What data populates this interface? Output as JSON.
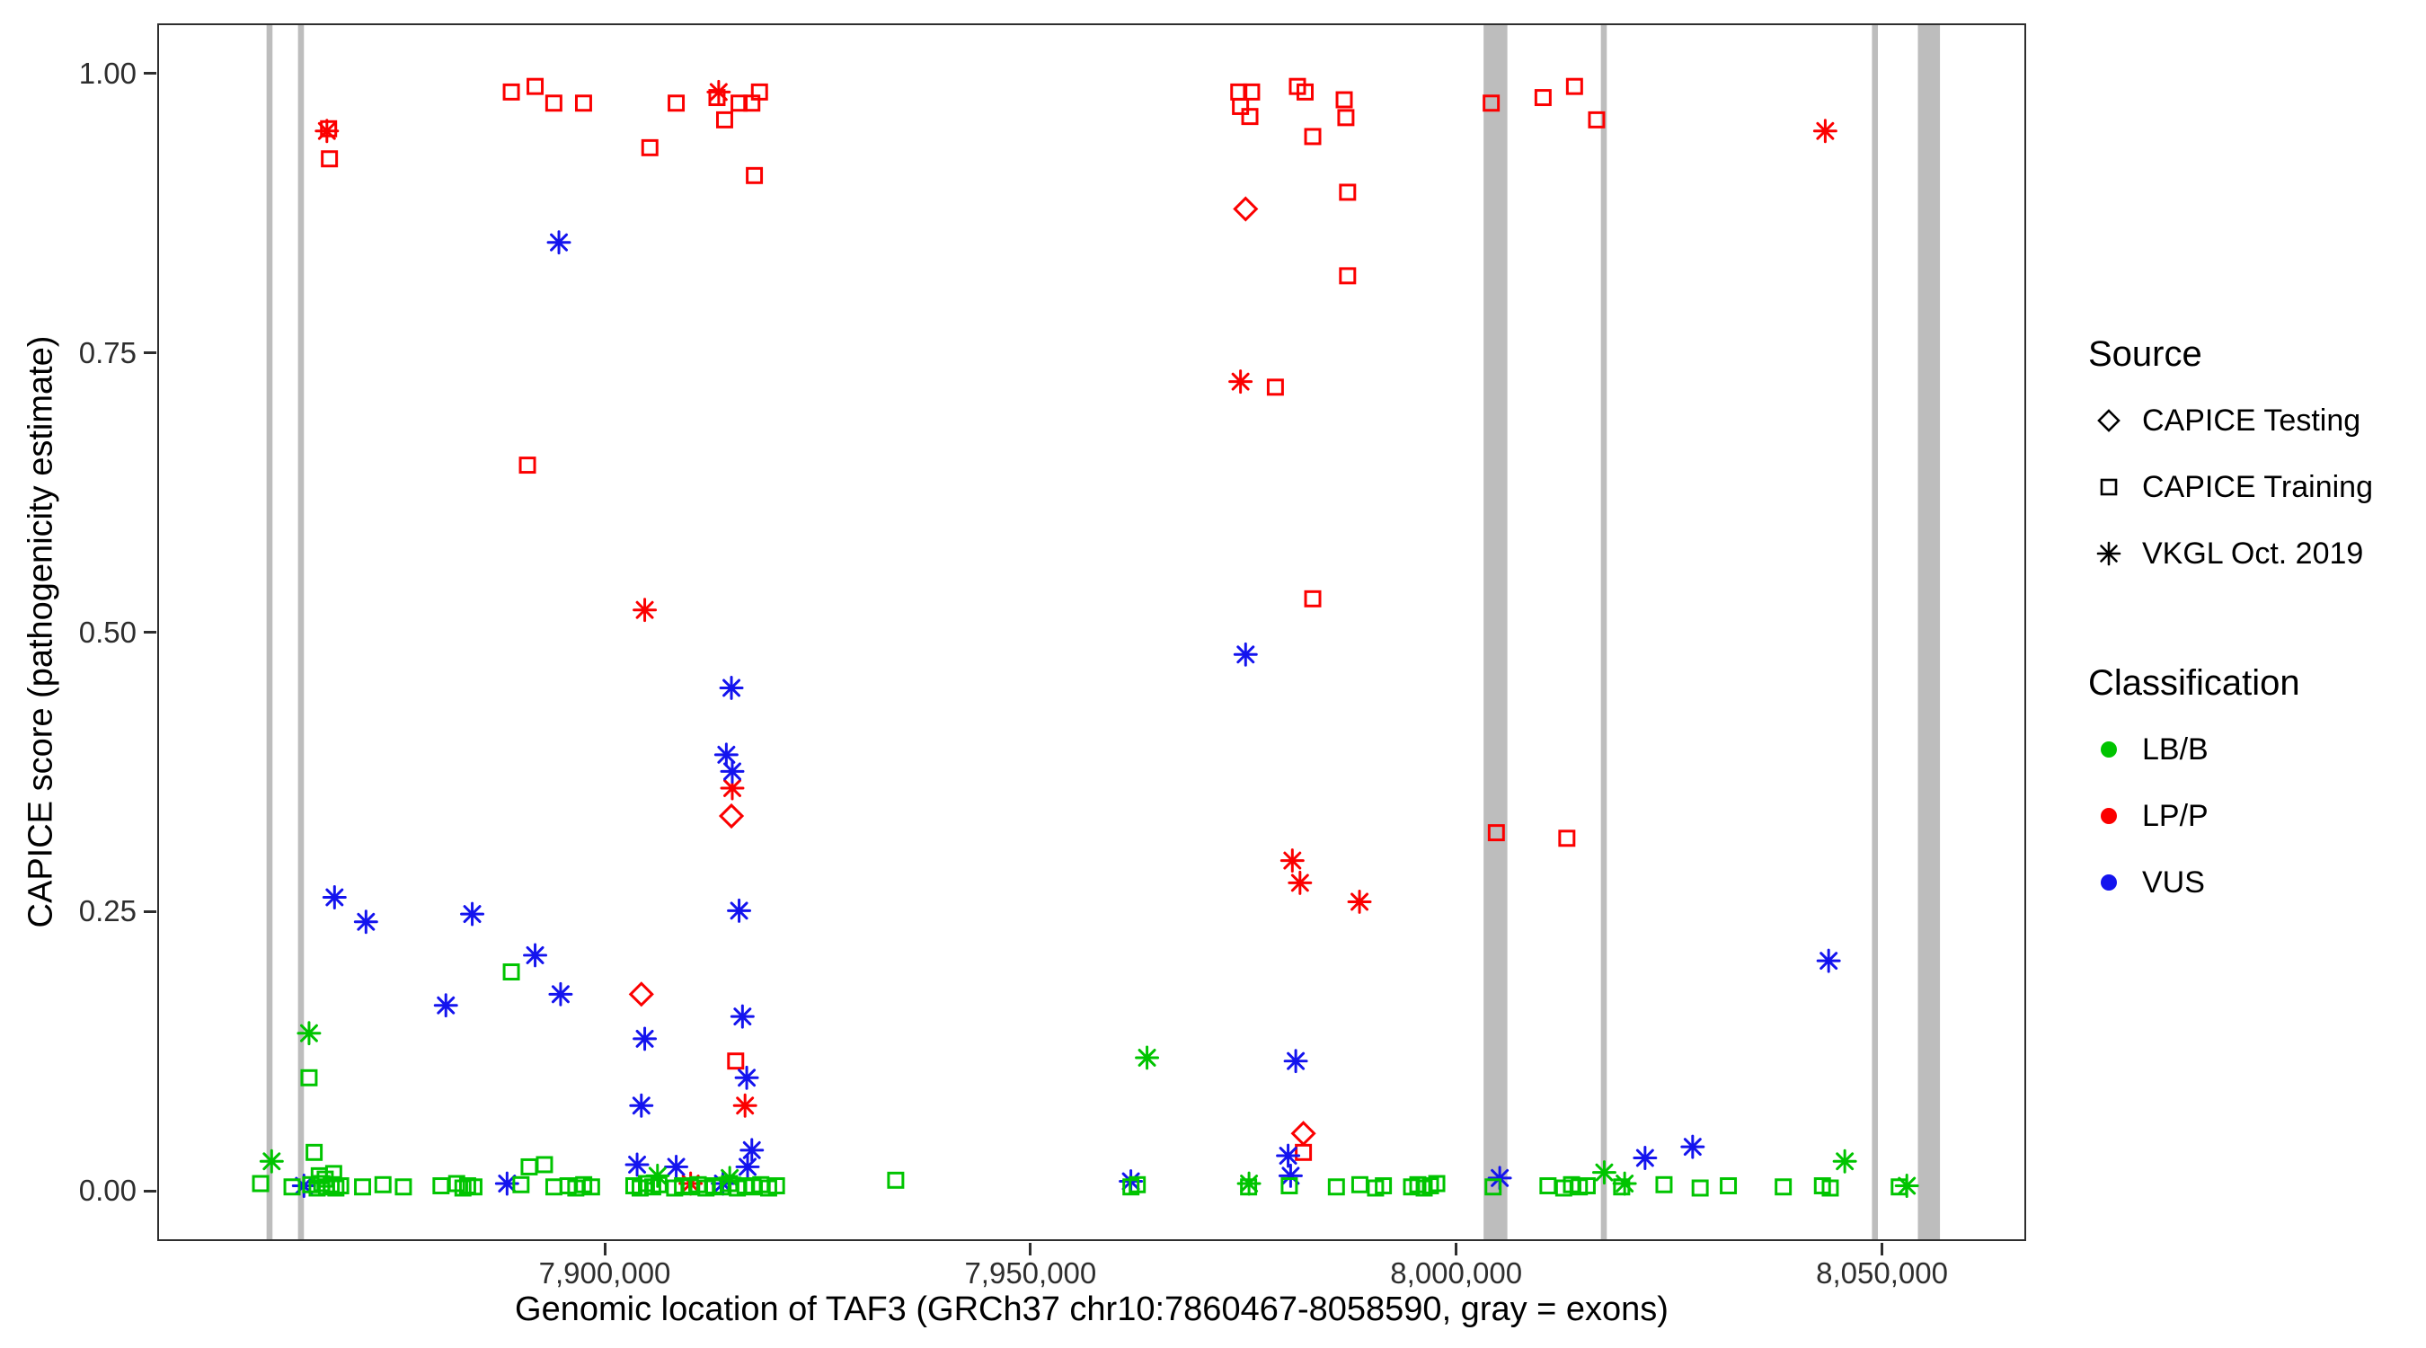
{
  "legend": {
    "source_title": "Source",
    "source_items": [
      {
        "label": "CAPICE Testing",
        "marker": "diamond-open"
      },
      {
        "label": "CAPICE Training",
        "marker": "square-open"
      },
      {
        "label": "VKGL Oct. 2019",
        "marker": "asterisk"
      }
    ],
    "classification_title": "Classification",
    "classification_items": [
      {
        "label": "LB/B",
        "color": "#00c400"
      },
      {
        "label": "LP/P",
        "color": "#fb0000"
      },
      {
        "label": "VUS",
        "color": "#1414ee"
      }
    ]
  },
  "chart_data": {
    "type": "scatter",
    "title": "",
    "xlabel": "Genomic location of TAF3 (GRCh37 chr10:7860467-8058590, gray = exons)",
    "ylabel": "CAPICE score (pathogenicity estimate)",
    "xlim": [
      7847450,
      8066930
    ],
    "ylim": [
      -0.045,
      1.045
    ],
    "grid": false,
    "legend_position": "right",
    "xticks": [
      {
        "value": 7900000,
        "label": "7,900,000"
      },
      {
        "value": 7950000,
        "label": "7,950,000"
      },
      {
        "value": 8000000,
        "label": "8,000,000"
      },
      {
        "value": 8050000,
        "label": "8,050,000"
      }
    ],
    "yticks": [
      {
        "value": 0.0,
        "label": "0.00"
      },
      {
        "value": 0.25,
        "label": "0.25"
      },
      {
        "value": 0.5,
        "label": "0.50"
      },
      {
        "value": 0.75,
        "label": "0.75"
      },
      {
        "value": 1.0,
        "label": "1.00"
      }
    ],
    "exon_color": "#bdbdbd",
    "colors": {
      "LB/B": "#00c400",
      "LP/P": "#fb0000",
      "VUS": "#1414ee"
    },
    "source_shapes": {
      "testing": "diamond-open",
      "training": "square-open",
      "vkgl": "asterisk"
    },
    "exons": [
      {
        "start": 7860100,
        "end": 7860800
      },
      {
        "start": 7863800,
        "end": 7864500
      },
      {
        "start": 8003300,
        "end": 8006100
      },
      {
        "start": 8017100,
        "end": 8017800
      },
      {
        "start": 8049000,
        "end": 8049700
      },
      {
        "start": 8054400,
        "end": 8057000
      }
    ],
    "points": [
      {
        "x": 7888900,
        "y": 0.985,
        "c": "LP/P",
        "s": "training"
      },
      {
        "x": 7891700,
        "y": 0.99,
        "c": "LP/P",
        "s": "training"
      },
      {
        "x": 7893900,
        "y": 0.975,
        "c": "LP/P",
        "s": "training"
      },
      {
        "x": 7897400,
        "y": 0.975,
        "c": "LP/P",
        "s": "training"
      },
      {
        "x": 7905200,
        "y": 0.935,
        "c": "LP/P",
        "s": "training"
      },
      {
        "x": 7908300,
        "y": 0.975,
        "c": "LP/P",
        "s": "training"
      },
      {
        "x": 7913100,
        "y": 0.98,
        "c": "LP/P",
        "s": "training"
      },
      {
        "x": 7914000,
        "y": 0.96,
        "c": "LP/P",
        "s": "training"
      },
      {
        "x": 7915700,
        "y": 0.975,
        "c": "LP/P",
        "s": "training"
      },
      {
        "x": 7917200,
        "y": 0.975,
        "c": "LP/P",
        "s": "training"
      },
      {
        "x": 7918100,
        "y": 0.985,
        "c": "LP/P",
        "s": "training"
      },
      {
        "x": 7917500,
        "y": 0.91,
        "c": "LP/P",
        "s": "training"
      },
      {
        "x": 7867500,
        "y": 0.925,
        "c": "LP/P",
        "s": "training"
      },
      {
        "x": 7867400,
        "y": 0.952,
        "c": "LP/P",
        "s": "training"
      },
      {
        "x": 7890800,
        "y": 0.65,
        "c": "LP/P",
        "s": "training"
      },
      {
        "x": 7974500,
        "y": 0.985,
        "c": "LP/P",
        "s": "training"
      },
      {
        "x": 7976000,
        "y": 0.985,
        "c": "LP/P",
        "s": "training"
      },
      {
        "x": 7974700,
        "y": 0.972,
        "c": "LP/P",
        "s": "training"
      },
      {
        "x": 7975800,
        "y": 0.963,
        "c": "LP/P",
        "s": "training"
      },
      {
        "x": 7981400,
        "y": 0.99,
        "c": "LP/P",
        "s": "training"
      },
      {
        "x": 7982300,
        "y": 0.985,
        "c": "LP/P",
        "s": "training"
      },
      {
        "x": 7986900,
        "y": 0.978,
        "c": "LP/P",
        "s": "training"
      },
      {
        "x": 7987100,
        "y": 0.962,
        "c": "LP/P",
        "s": "training"
      },
      {
        "x": 7983200,
        "y": 0.945,
        "c": "LP/P",
        "s": "training"
      },
      {
        "x": 7987300,
        "y": 0.895,
        "c": "LP/P",
        "s": "training"
      },
      {
        "x": 7987300,
        "y": 0.82,
        "c": "LP/P",
        "s": "training"
      },
      {
        "x": 7978800,
        "y": 0.72,
        "c": "LP/P",
        "s": "training"
      },
      {
        "x": 7983200,
        "y": 0.53,
        "c": "LP/P",
        "s": "training"
      },
      {
        "x": 8004200,
        "y": 0.975,
        "c": "LP/P",
        "s": "training"
      },
      {
        "x": 8010300,
        "y": 0.98,
        "c": "LP/P",
        "s": "training"
      },
      {
        "x": 8014000,
        "y": 0.99,
        "c": "LP/P",
        "s": "training"
      },
      {
        "x": 8016600,
        "y": 0.96,
        "c": "LP/P",
        "s": "training"
      },
      {
        "x": 8004800,
        "y": 0.32,
        "c": "LP/P",
        "s": "training"
      },
      {
        "x": 8013100,
        "y": 0.315,
        "c": "LP/P",
        "s": "training"
      },
      {
        "x": 7915300,
        "y": 0.115,
        "c": "LP/P",
        "s": "training"
      },
      {
        "x": 7982100,
        "y": 0.033,
        "c": "LP/P",
        "s": "training"
      },
      {
        "x": 7975300,
        "y": 0.88,
        "c": "LP/P",
        "s": "testing"
      },
      {
        "x": 7914800,
        "y": 0.335,
        "c": "LP/P",
        "s": "testing"
      },
      {
        "x": 7904200,
        "y": 0.175,
        "c": "LP/P",
        "s": "testing"
      },
      {
        "x": 7982100,
        "y": 0.05,
        "c": "LP/P",
        "s": "testing"
      },
      {
        "x": 7867200,
        "y": 0.95,
        "c": "LP/P",
        "s": "vkgl"
      },
      {
        "x": 7913300,
        "y": 0.985,
        "c": "LP/P",
        "s": "vkgl"
      },
      {
        "x": 7904600,
        "y": 0.52,
        "c": "LP/P",
        "s": "vkgl"
      },
      {
        "x": 7914900,
        "y": 0.36,
        "c": "LP/P",
        "s": "vkgl"
      },
      {
        "x": 7974700,
        "y": 0.725,
        "c": "LP/P",
        "s": "vkgl"
      },
      {
        "x": 7980800,
        "y": 0.295,
        "c": "LP/P",
        "s": "vkgl"
      },
      {
        "x": 7981700,
        "y": 0.275,
        "c": "LP/P",
        "s": "vkgl"
      },
      {
        "x": 7988700,
        "y": 0.258,
        "c": "LP/P",
        "s": "vkgl"
      },
      {
        "x": 8043500,
        "y": 0.95,
        "c": "LP/P",
        "s": "vkgl"
      },
      {
        "x": 7916400,
        "y": 0.075,
        "c": "LP/P",
        "s": "vkgl"
      },
      {
        "x": 7910000,
        "y": 0.005,
        "c": "LP/P",
        "s": "vkgl"
      },
      {
        "x": 7894500,
        "y": 0.85,
        "c": "VUS",
        "s": "vkgl"
      },
      {
        "x": 7914800,
        "y": 0.45,
        "c": "VUS",
        "s": "vkgl"
      },
      {
        "x": 7914200,
        "y": 0.39,
        "c": "VUS",
        "s": "vkgl"
      },
      {
        "x": 7914900,
        "y": 0.375,
        "c": "VUS",
        "s": "vkgl"
      },
      {
        "x": 7915700,
        "y": 0.25,
        "c": "VUS",
        "s": "vkgl"
      },
      {
        "x": 7868100,
        "y": 0.262,
        "c": "VUS",
        "s": "vkgl"
      },
      {
        "x": 7871800,
        "y": 0.24,
        "c": "VUS",
        "s": "vkgl"
      },
      {
        "x": 7884300,
        "y": 0.247,
        "c": "VUS",
        "s": "vkgl"
      },
      {
        "x": 7881200,
        "y": 0.165,
        "c": "VUS",
        "s": "vkgl"
      },
      {
        "x": 7891700,
        "y": 0.21,
        "c": "VUS",
        "s": "vkgl"
      },
      {
        "x": 7894700,
        "y": 0.175,
        "c": "VUS",
        "s": "vkgl"
      },
      {
        "x": 7904600,
        "y": 0.135,
        "c": "VUS",
        "s": "vkgl"
      },
      {
        "x": 7904200,
        "y": 0.075,
        "c": "VUS",
        "s": "vkgl"
      },
      {
        "x": 7916100,
        "y": 0.155,
        "c": "VUS",
        "s": "vkgl"
      },
      {
        "x": 7916600,
        "y": 0.1,
        "c": "VUS",
        "s": "vkgl"
      },
      {
        "x": 7975300,
        "y": 0.48,
        "c": "VUS",
        "s": "vkgl"
      },
      {
        "x": 7981200,
        "y": 0.115,
        "c": "VUS",
        "s": "vkgl"
      },
      {
        "x": 7917200,
        "y": 0.035,
        "c": "VUS",
        "s": "vkgl"
      },
      {
        "x": 7908300,
        "y": 0.02,
        "c": "VUS",
        "s": "vkgl"
      },
      {
        "x": 7903700,
        "y": 0.022,
        "c": "VUS",
        "s": "vkgl"
      },
      {
        "x": 7888400,
        "y": 0.005,
        "c": "VUS",
        "s": "vkgl"
      },
      {
        "x": 7961800,
        "y": 0.007,
        "c": "VUS",
        "s": "vkgl"
      },
      {
        "x": 7980300,
        "y": 0.03,
        "c": "VUS",
        "s": "vkgl"
      },
      {
        "x": 7980600,
        "y": 0.012,
        "c": "VUS",
        "s": "vkgl"
      },
      {
        "x": 8005200,
        "y": 0.01,
        "c": "VUS",
        "s": "vkgl"
      },
      {
        "x": 8022300,
        "y": 0.028,
        "c": "VUS",
        "s": "vkgl"
      },
      {
        "x": 8027900,
        "y": 0.038,
        "c": "VUS",
        "s": "vkgl"
      },
      {
        "x": 8043900,
        "y": 0.205,
        "c": "VUS",
        "s": "vkgl"
      },
      {
        "x": 7913800,
        "y": 0.005,
        "c": "VUS",
        "s": "vkgl"
      },
      {
        "x": 7864500,
        "y": 0.003,
        "c": "VUS",
        "s": "vkgl"
      },
      {
        "x": 7916700,
        "y": 0.02,
        "c": "VUS",
        "s": "vkgl"
      },
      {
        "x": 7860700,
        "y": 0.025,
        "c": "LB/B",
        "s": "vkgl"
      },
      {
        "x": 7865100,
        "y": 0.14,
        "c": "LB/B",
        "s": "vkgl"
      },
      {
        "x": 7963700,
        "y": 0.118,
        "c": "LB/B",
        "s": "vkgl"
      },
      {
        "x": 8017500,
        "y": 0.015,
        "c": "LB/B",
        "s": "vkgl"
      },
      {
        "x": 8045800,
        "y": 0.025,
        "c": "LB/B",
        "s": "vkgl"
      },
      {
        "x": 7975700,
        "y": 0.005,
        "c": "LB/B",
        "s": "vkgl"
      },
      {
        "x": 7906100,
        "y": 0.012,
        "c": "LB/B",
        "s": "vkgl"
      },
      {
        "x": 8019900,
        "y": 0.005,
        "c": "LB/B",
        "s": "vkgl"
      },
      {
        "x": 8053100,
        "y": 0.003,
        "c": "LB/B",
        "s": "vkgl"
      },
      {
        "x": 7914600,
        "y": 0.01,
        "c": "LB/B",
        "s": "vkgl"
      },
      {
        "x": 7888900,
        "y": 0.195,
        "c": "LB/B",
        "s": "training"
      },
      {
        "x": 7865100,
        "y": 0.1,
        "c": "LB/B",
        "s": "training"
      },
      {
        "x": 7865700,
        "y": 0.033,
        "c": "LB/B",
        "s": "training"
      },
      {
        "x": 7891000,
        "y": 0.02,
        "c": "LB/B",
        "s": "training"
      },
      {
        "x": 7892800,
        "y": 0.022,
        "c": "LB/B",
        "s": "training"
      },
      {
        "x": 7866300,
        "y": 0.012,
        "c": "LB/B",
        "s": "training"
      },
      {
        "x": 7867000,
        "y": 0.009,
        "c": "LB/B",
        "s": "training"
      },
      {
        "x": 7868000,
        "y": 0.014,
        "c": "LB/B",
        "s": "training"
      },
      {
        "x": 7859400,
        "y": 0.005,
        "c": "LB/B",
        "s": "training"
      },
      {
        "x": 7863100,
        "y": 0.002,
        "c": "LB/B",
        "s": "training"
      },
      {
        "x": 7865300,
        "y": 0.004,
        "c": "LB/B",
        "s": "training"
      },
      {
        "x": 7866050,
        "y": 0.001,
        "c": "LB/B",
        "s": "training"
      },
      {
        "x": 7866600,
        "y": 0.005,
        "c": "LB/B",
        "s": "training"
      },
      {
        "x": 7867160,
        "y": 0.002,
        "c": "LB/B",
        "s": "training"
      },
      {
        "x": 7867710,
        "y": 0.004,
        "c": "LB/B",
        "s": "training"
      },
      {
        "x": 7868260,
        "y": 0.001,
        "c": "LB/B",
        "s": "training"
      },
      {
        "x": 7868820,
        "y": 0.003,
        "c": "LB/B",
        "s": "training"
      },
      {
        "x": 7871400,
        "y": 0.002,
        "c": "LB/B",
        "s": "training"
      },
      {
        "x": 7873800,
        "y": 0.004,
        "c": "LB/B",
        "s": "training"
      },
      {
        "x": 7876200,
        "y": 0.002,
        "c": "LB/B",
        "s": "training"
      },
      {
        "x": 7880630,
        "y": 0.003,
        "c": "LB/B",
        "s": "training"
      },
      {
        "x": 7882470,
        "y": 0.005,
        "c": "LB/B",
        "s": "training"
      },
      {
        "x": 7883210,
        "y": 0.001,
        "c": "LB/B",
        "s": "training"
      },
      {
        "x": 7883760,
        "y": 0.003,
        "c": "LB/B",
        "s": "training"
      },
      {
        "x": 7884500,
        "y": 0.002,
        "c": "LB/B",
        "s": "training"
      },
      {
        "x": 7890040,
        "y": 0.004,
        "c": "LB/B",
        "s": "training"
      },
      {
        "x": 7893910,
        "y": 0.002,
        "c": "LB/B",
        "s": "training"
      },
      {
        "x": 7895570,
        "y": 0.003,
        "c": "LB/B",
        "s": "training"
      },
      {
        "x": 7896490,
        "y": 0.001,
        "c": "LB/B",
        "s": "training"
      },
      {
        "x": 7897420,
        "y": 0.004,
        "c": "LB/B",
        "s": "training"
      },
      {
        "x": 7898340,
        "y": 0.002,
        "c": "LB/B",
        "s": "training"
      },
      {
        "x": 7903320,
        "y": 0.003,
        "c": "LB/B",
        "s": "training"
      },
      {
        "x": 7904060,
        "y": 0.001,
        "c": "LB/B",
        "s": "training"
      },
      {
        "x": 7904800,
        "y": 0.005,
        "c": "LB/B",
        "s": "training"
      },
      {
        "x": 7905540,
        "y": 0.002,
        "c": "LB/B",
        "s": "training"
      },
      {
        "x": 7906270,
        "y": 0.004,
        "c": "LB/B",
        "s": "training"
      },
      {
        "x": 7908120,
        "y": 0.001,
        "c": "LB/B",
        "s": "training"
      },
      {
        "x": 7909040,
        "y": 0.003,
        "c": "LB/B",
        "s": "training"
      },
      {
        "x": 7909960,
        "y": 0.002,
        "c": "LB/B",
        "s": "training"
      },
      {
        "x": 7910890,
        "y": 0.004,
        "c": "LB/B",
        "s": "training"
      },
      {
        "x": 7911810,
        "y": 0.001,
        "c": "LB/B",
        "s": "training"
      },
      {
        "x": 7912730,
        "y": 0.003,
        "c": "LB/B",
        "s": "training"
      },
      {
        "x": 7913650,
        "y": 0.002,
        "c": "LB/B",
        "s": "training"
      },
      {
        "x": 7914570,
        "y": 0.005,
        "c": "LB/B",
        "s": "training"
      },
      {
        "x": 7915500,
        "y": 0.001,
        "c": "LB/B",
        "s": "training"
      },
      {
        "x": 7916420,
        "y": 0.003,
        "c": "LB/B",
        "s": "training"
      },
      {
        "x": 7917340,
        "y": 0.002,
        "c": "LB/B",
        "s": "training"
      },
      {
        "x": 7918260,
        "y": 0.004,
        "c": "LB/B",
        "s": "training"
      },
      {
        "x": 7919180,
        "y": 0.001,
        "c": "LB/B",
        "s": "training"
      },
      {
        "x": 7920100,
        "y": 0.003,
        "c": "LB/B",
        "s": "training"
      },
      {
        "x": 7934130,
        "y": 0.008,
        "c": "LB/B",
        "s": "training"
      },
      {
        "x": 7961810,
        "y": 0.002,
        "c": "LB/B",
        "s": "training"
      },
      {
        "x": 7962550,
        "y": 0.004,
        "c": "LB/B",
        "s": "training"
      },
      {
        "x": 7975650,
        "y": 0.002,
        "c": "LB/B",
        "s": "training"
      },
      {
        "x": 7980440,
        "y": 0.003,
        "c": "LB/B",
        "s": "training"
      },
      {
        "x": 7985980,
        "y": 0.002,
        "c": "LB/B",
        "s": "training"
      },
      {
        "x": 7988740,
        "y": 0.004,
        "c": "LB/B",
        "s": "training"
      },
      {
        "x": 7990590,
        "y": 0.001,
        "c": "LB/B",
        "s": "training"
      },
      {
        "x": 7991510,
        "y": 0.003,
        "c": "LB/B",
        "s": "training"
      },
      {
        "x": 7994830,
        "y": 0.002,
        "c": "LB/B",
        "s": "training"
      },
      {
        "x": 7995570,
        "y": 0.004,
        "c": "LB/B",
        "s": "training"
      },
      {
        "x": 7996310,
        "y": 0.001,
        "c": "LB/B",
        "s": "training"
      },
      {
        "x": 7997050,
        "y": 0.003,
        "c": "LB/B",
        "s": "training"
      },
      {
        "x": 7997790,
        "y": 0.005,
        "c": "LB/B",
        "s": "training"
      },
      {
        "x": 8004420,
        "y": 0.002,
        "c": "LB/B",
        "s": "training"
      },
      {
        "x": 8010880,
        "y": 0.003,
        "c": "LB/B",
        "s": "training"
      },
      {
        "x": 8012730,
        "y": 0.001,
        "c": "LB/B",
        "s": "training"
      },
      {
        "x": 8013650,
        "y": 0.004,
        "c": "LB/B",
        "s": "training"
      },
      {
        "x": 8014570,
        "y": 0.002,
        "c": "LB/B",
        "s": "training"
      },
      {
        "x": 8015490,
        "y": 0.003,
        "c": "LB/B",
        "s": "training"
      },
      {
        "x": 8019550,
        "y": 0.002,
        "c": "LB/B",
        "s": "training"
      },
      {
        "x": 8024530,
        "y": 0.004,
        "c": "LB/B",
        "s": "training"
      },
      {
        "x": 8028780,
        "y": 0.001,
        "c": "LB/B",
        "s": "training"
      },
      {
        "x": 8032100,
        "y": 0.003,
        "c": "LB/B",
        "s": "training"
      },
      {
        "x": 8038560,
        "y": 0.002,
        "c": "LB/B",
        "s": "training"
      },
      {
        "x": 8043170,
        "y": 0.003,
        "c": "LB/B",
        "s": "training"
      },
      {
        "x": 8044090,
        "y": 0.001,
        "c": "LB/B",
        "s": "training"
      },
      {
        "x": 8052210,
        "y": 0.002,
        "c": "LB/B",
        "s": "training"
      }
    ]
  }
}
